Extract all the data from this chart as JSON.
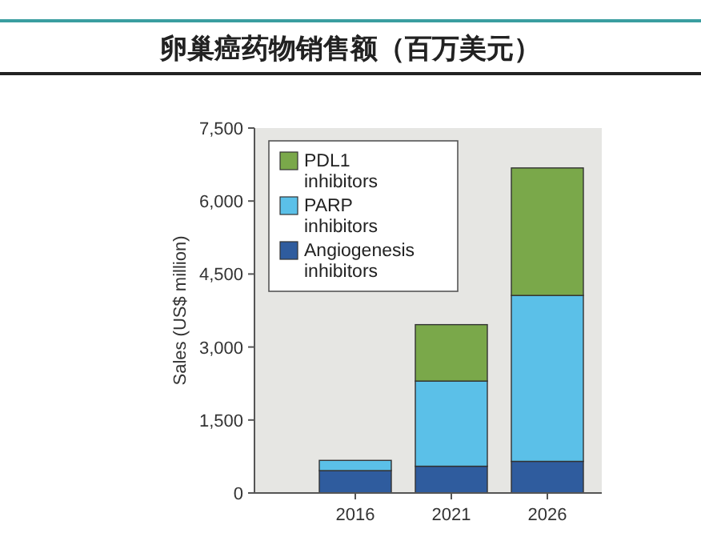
{
  "chart_data": {
    "type": "bar",
    "title": "卵巢癌药物销售额（百万美元）",
    "ylabel": "Sales (US$ million)",
    "categories": [
      "2016",
      "2021",
      "2026"
    ],
    "stacked": true,
    "series": [
      {
        "name": "Angiogenesis inhibitors",
        "color": "#2f5c9e",
        "values": [
          460,
          550,
          650
        ]
      },
      {
        "name": "PARP inhibitors",
        "color": "#5bc0e8",
        "values": [
          210,
          1750,
          3410
        ]
      },
      {
        "name": "PDL1 inhibitors",
        "color": "#7aa84a",
        "values": [
          0,
          1160,
          2620
        ]
      }
    ],
    "ylim": [
      0,
      7500
    ],
    "yticks": [
      0,
      {
        "value": 1500,
        "label": "1,500"
      },
      {
        "value": 3000,
        "label": "3,000"
      },
      {
        "value": 4500,
        "label": "4,500"
      },
      {
        "value": 6000,
        "label": "6,000"
      },
      {
        "value": 7500,
        "label": "7,500"
      }
    ],
    "legend": "top left",
    "grid": false
  }
}
